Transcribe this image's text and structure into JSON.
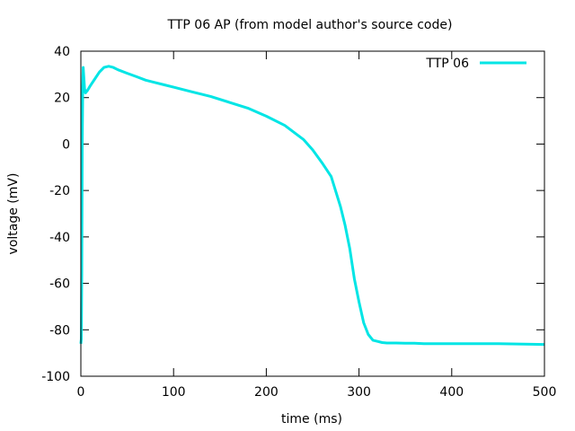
{
  "chart_data": {
    "type": "line",
    "title": "TTP 06 AP (from model author's source code)",
    "xlabel": "time (ms)",
    "ylabel": "voltage (mV)",
    "xlim": [
      0,
      500
    ],
    "ylim": [
      -100,
      40
    ],
    "x_ticks": [
      "0",
      "100",
      "200",
      "300",
      "400",
      "500"
    ],
    "y_ticks": [
      "-100",
      "-80",
      "-60",
      "-40",
      "-20",
      "0",
      "20",
      "40"
    ],
    "grid": false,
    "legend_position": "top-right",
    "series": [
      {
        "name": "TTP 06",
        "color": "#00e5e5",
        "x": [
          0,
          0.5,
          1,
          1.5,
          2,
          2.5,
          3,
          4,
          5,
          7,
          10,
          15,
          20,
          25,
          30,
          35,
          40,
          50,
          60,
          70,
          80,
          90,
          100,
          120,
          140,
          160,
          180,
          200,
          220,
          240,
          250,
          260,
          270,
          280,
          285,
          290,
          295,
          300,
          305,
          310,
          315,
          320,
          325,
          330,
          340,
          350,
          360,
          370,
          380,
          400,
          450,
          500
        ],
        "y": [
          -86,
          -84,
          -55,
          0,
          25,
          33,
          30,
          24,
          22,
          23,
          25,
          28,
          31,
          33,
          33.5,
          33,
          32,
          30.5,
          29,
          27.5,
          26.5,
          25.5,
          24.5,
          22.5,
          20.5,
          18,
          15.5,
          12,
          8,
          2,
          -2.5,
          -8,
          -14,
          -27,
          -35,
          -45,
          -58,
          -68,
          -77,
          -82,
          -84.5,
          -85,
          -85.5,
          -85.7,
          -85.7,
          -85.8,
          -85.8,
          -86,
          -86,
          -86,
          -86,
          -86.3
        ]
      }
    ]
  }
}
